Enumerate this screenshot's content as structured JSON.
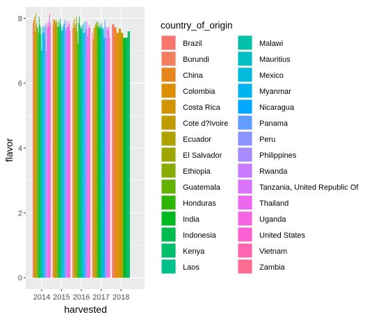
{
  "chart_data": {
    "type": "bar",
    "xlabel": "harvested",
    "ylabel": "flavor",
    "categories": [
      "2014",
      "2015",
      "2016",
      "2017",
      "2018"
    ],
    "yticks": [
      0,
      2,
      4,
      6,
      8
    ],
    "ylim": [
      -0.35,
      8.35
    ],
    "grid": true,
    "legend": {
      "title": "country_of_origin",
      "placement": "right",
      "columns": 2
    },
    "series": [
      {
        "name": "Brazil",
        "color": "#F8766D",
        "values": [
          7.85,
          7.8,
          7.7,
          7.55,
          7.82
        ]
      },
      {
        "name": "Burundi",
        "color": "#F17F5D",
        "values": [
          null,
          null,
          null,
          null,
          null
        ]
      },
      {
        "name": "China",
        "color": "#E7861B",
        "values": [
          7.95,
          8.0,
          null,
          7.35,
          7.72
        ]
      },
      {
        "name": "Colombia",
        "color": "#DB8E00",
        "values": [
          8.05,
          7.95,
          7.85,
          7.72,
          7.55
        ]
      },
      {
        "name": "Costa Rica",
        "color": "#CF9400",
        "values": [
          7.6,
          7.95,
          8.0,
          7.7,
          7.68
        ]
      },
      {
        "name": "Cote d?Ivoire",
        "color": "#C09B00",
        "values": [
          null,
          null,
          null,
          null,
          null
        ]
      },
      {
        "name": "Ecuador",
        "color": "#AFA100",
        "values": [
          8.15,
          7.85,
          7.7,
          7.8,
          7.55
        ]
      },
      {
        "name": "El Salvador",
        "color": "#9DA700",
        "values": [
          7.85,
          7.95,
          7.82,
          7.85,
          null
        ]
      },
      {
        "name": "Ethiopia",
        "color": "#86AC00",
        "values": [
          7.75,
          7.9,
          8.05,
          7.9,
          null
        ]
      },
      {
        "name": "Guatemala",
        "color": "#64B200",
        "values": [
          7.7,
          7.75,
          7.6,
          7.75,
          null
        ]
      },
      {
        "name": "Honduras",
        "color": "#2DB600",
        "values": [
          7.55,
          7.72,
          7.22,
          7.88,
          null
        ]
      },
      {
        "name": "India",
        "color": "#00B81F",
        "values": [
          8.05,
          7.9,
          7.85,
          7.75,
          7.4
        ]
      },
      {
        "name": "Indonesia",
        "color": "#00BB4E",
        "values": [
          7.8,
          7.75,
          8.05,
          7.7,
          7.4
        ]
      },
      {
        "name": "Kenya",
        "color": "#00BE6C",
        "values": [
          7.72,
          8.0,
          7.78,
          7.8,
          7.6
        ]
      },
      {
        "name": "Laos",
        "color": "#00C08B",
        "values": [
          7.5,
          7.82,
          7.68,
          7.7,
          null
        ]
      },
      {
        "name": "Malawi",
        "color": "#00C1A7",
        "values": [
          7.0,
          7.6,
          7.72,
          7.85,
          null
        ]
      },
      {
        "name": "Mauritius",
        "color": "#00BFC4",
        "values": [
          7.75,
          7.72,
          7.8,
          7.72,
          null
        ]
      },
      {
        "name": "Mexico",
        "color": "#00BBDA",
        "values": [
          7.55,
          7.65,
          7.55,
          7.65,
          null
        ]
      },
      {
        "name": "Myanmar",
        "color": "#00B4F0",
        "values": [
          7.72,
          7.8,
          7.85,
          7.7,
          null
        ]
      },
      {
        "name": "Nicaragua",
        "color": "#00A9FF",
        "values": [
          7.55,
          7.85,
          7.55,
          7.4,
          null
        ]
      },
      {
        "name": "Panama",
        "color": "#619CFF",
        "values": [
          7.8,
          7.95,
          7.9,
          7.95,
          null
        ]
      },
      {
        "name": "Peru",
        "color": "#8B93FF",
        "values": [
          7.75,
          7.7,
          null,
          7.75,
          null
        ]
      },
      {
        "name": "Philippines",
        "color": "#A88BFF",
        "values": [
          7.0,
          7.62,
          7.65,
          7.4,
          null
        ]
      },
      {
        "name": "Rwanda",
        "color": "#C77CFF",
        "values": [
          7.85,
          7.92,
          7.9,
          7.7,
          null
        ]
      },
      {
        "name": "Tanzania, United Republic Of",
        "color": "#DB72FB",
        "values": [
          7.7,
          7.72,
          7.45,
          7.72,
          null
        ]
      },
      {
        "name": "Thailand",
        "color": "#EB68EF",
        "values": [
          7.9,
          7.75,
          null,
          7.62,
          null
        ]
      },
      {
        "name": "Uganda",
        "color": "#F564E3",
        "values": [
          7.75,
          7.9,
          7.72,
          7.75,
          null
        ]
      },
      {
        "name": "United States",
        "color": "#FD61D1",
        "values": [
          8.15,
          7.82,
          7.8,
          null,
          null
        ]
      },
      {
        "name": "Vietnam",
        "color": "#FF64B0",
        "values": [
          7.85,
          7.62,
          7.7,
          7.4,
          null
        ]
      },
      {
        "name": "Zambia",
        "color": "#FF6C91",
        "values": [
          null,
          null,
          null,
          null,
          null
        ]
      }
    ]
  }
}
